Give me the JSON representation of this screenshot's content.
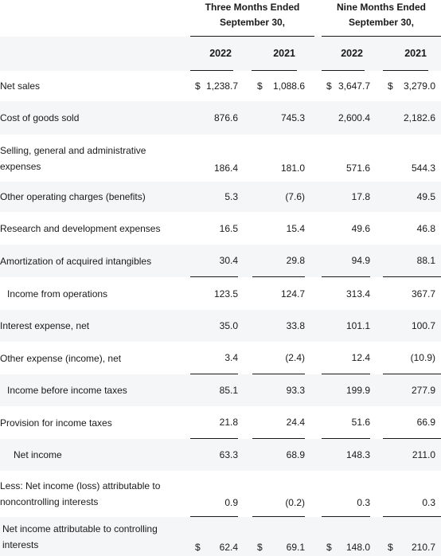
{
  "column_groups": [
    {
      "line1": "Three Months Ended",
      "line2": "September 30,"
    },
    {
      "line1": "Nine Months Ended",
      "line2": "September 30,"
    }
  ],
  "years": [
    "2022",
    "2021",
    "2022",
    "2021"
  ],
  "currency_symbol": "$",
  "rows": [
    {
      "label": "Net sales",
      "values": [
        "1,238.7",
        "1,088.6",
        "3,647.7",
        "3,279.0"
      ]
    },
    {
      "label": "Cost of goods sold",
      "values": [
        "876.6",
        "745.3",
        "2,600.4",
        "2,182.6"
      ]
    },
    {
      "label_line1": "Selling, general and administrative",
      "label_line2": "expenses",
      "values": [
        "186.4",
        "181.0",
        "571.6",
        "544.3"
      ]
    },
    {
      "label": "Other operating charges (benefits)",
      "values": [
        "5.3",
        "(7.6)",
        "17.8",
        "49.5"
      ]
    },
    {
      "label": "Research and development expenses",
      "values": [
        "16.5",
        "15.4",
        "49.6",
        "46.8"
      ]
    },
    {
      "label": "Amortization of acquired intangibles",
      "values": [
        "30.4",
        "29.8",
        "94.9",
        "88.1"
      ]
    },
    {
      "label": "Income from operations",
      "values": [
        "123.5",
        "124.7",
        "313.4",
        "367.7"
      ]
    },
    {
      "label": "Interest expense, net",
      "values": [
        "35.0",
        "33.8",
        "101.1",
        "100.7"
      ]
    },
    {
      "label": "Other expense (income), net",
      "values": [
        "3.4",
        "(2.4)",
        "12.4",
        "(10.9)"
      ]
    },
    {
      "label": "Income before income taxes",
      "values": [
        "85.1",
        "93.3",
        "199.9",
        "277.9"
      ]
    },
    {
      "label": "Provision for income taxes",
      "values": [
        "21.8",
        "24.4",
        "51.6",
        "66.9"
      ]
    },
    {
      "label": "Net income",
      "values": [
        "63.3",
        "68.9",
        "148.3",
        "211.0"
      ]
    },
    {
      "label_line1": "Less: Net income (loss) attributable to",
      "label_line2": "noncontrolling interests",
      "values": [
        "0.9",
        "(0.2)",
        "0.3",
        "0.3"
      ]
    },
    {
      "label_line1": "Net income attributable to controlling",
      "label_line2": "interests",
      "values": [
        "62.4",
        "69.1",
        "148.0",
        "210.7"
      ]
    }
  ]
}
